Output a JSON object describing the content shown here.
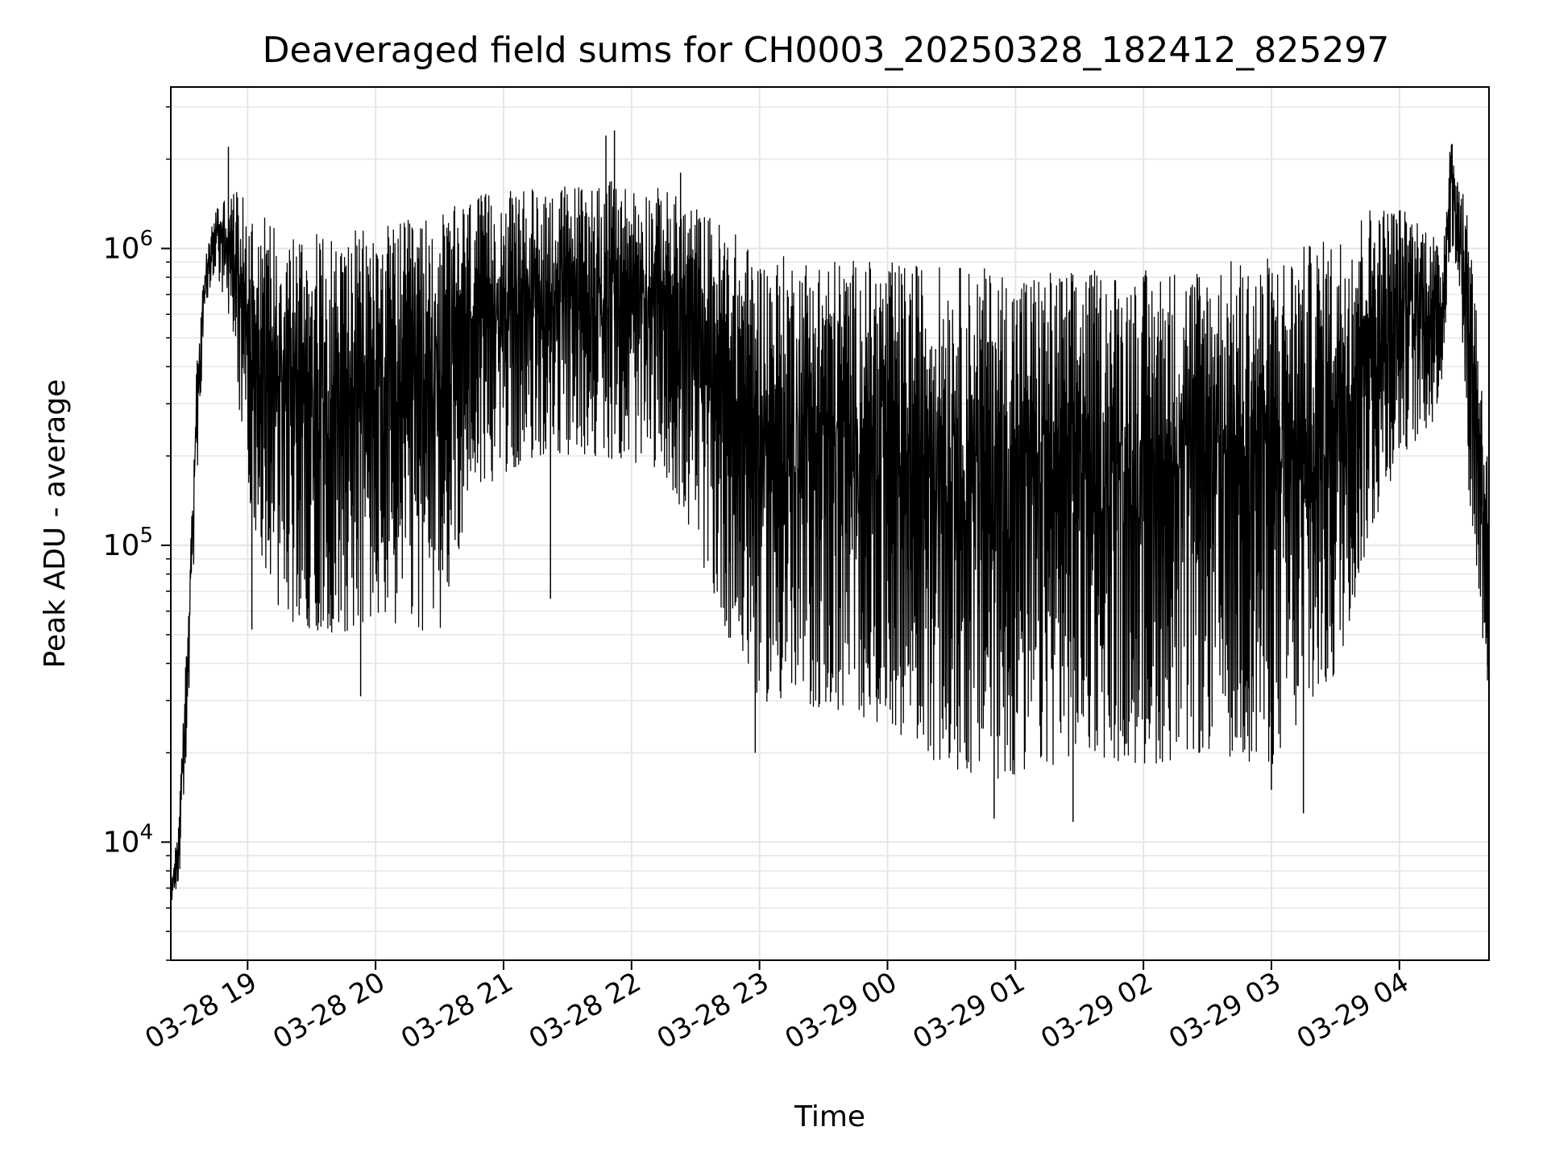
{
  "chart_data": {
    "type": "line",
    "title": "Deaveraged field sums for CH0003_20250328_182412_825297",
    "xlabel": "Time",
    "ylabel": "Peak ADU - average",
    "yscale": "log",
    "xlim": [
      "2025-03-28 18:24",
      "2025-03-29 04:42"
    ],
    "ylim": [
      4000,
      3500000
    ],
    "grid": true,
    "grid_minor": true,
    "line_color": "#000000",
    "x_ticks": [
      {
        "t": "2025-03-28 19:00",
        "label": "03-28 19"
      },
      {
        "t": "2025-03-28 20:00",
        "label": "03-28 20"
      },
      {
        "t": "2025-03-28 21:00",
        "label": "03-28 21"
      },
      {
        "t": "2025-03-28 22:00",
        "label": "03-28 22"
      },
      {
        "t": "2025-03-28 23:00",
        "label": "03-28 23"
      },
      {
        "t": "2025-03-29 00:00",
        "label": "03-29 00"
      },
      {
        "t": "2025-03-29 01:00",
        "label": "03-29 01"
      },
      {
        "t": "2025-03-29 02:00",
        "label": "03-29 02"
      },
      {
        "t": "2025-03-29 03:00",
        "label": "03-29 03"
      },
      {
        "t": "2025-03-29 04:00",
        "label": "03-29 04"
      }
    ],
    "y_ticks": [
      {
        "value": 10000,
        "base": "10",
        "exp": "4"
      },
      {
        "value": 100000,
        "base": "10",
        "exp": "5"
      },
      {
        "value": 1000000,
        "base": "10",
        "exp": "6"
      }
    ],
    "envelope": [
      {
        "t": "2025-03-28 18:24",
        "lo": 6000,
        "hi": 7000
      },
      {
        "t": "2025-03-28 18:28",
        "lo": 7500,
        "hi": 13000
      },
      {
        "t": "2025-03-28 18:32",
        "lo": 25000,
        "hi": 60000
      },
      {
        "t": "2025-03-28 18:36",
        "lo": 150000,
        "hi": 400000
      },
      {
        "t": "2025-03-28 18:40",
        "lo": 600000,
        "hi": 900000
      },
      {
        "t": "2025-03-28 18:45",
        "lo": 850000,
        "hi": 1400000
      },
      {
        "t": "2025-03-28 18:50",
        "lo": 600000,
        "hi": 1500000
      },
      {
        "t": "2025-03-28 18:55",
        "lo": 350000,
        "hi": 1600000
      },
      {
        "t": "2025-03-28 19:00",
        "lo": 150000,
        "hi": 1400000
      },
      {
        "t": "2025-03-28 19:10",
        "lo": 70000,
        "hi": 1300000
      },
      {
        "t": "2025-03-28 19:20",
        "lo": 55000,
        "hi": 1200000
      },
      {
        "t": "2025-03-28 19:40",
        "lo": 50000,
        "hi": 1100000
      },
      {
        "t": "2025-03-28 20:00",
        "lo": 55000,
        "hi": 1200000
      },
      {
        "t": "2025-03-28 20:30",
        "lo": 50000,
        "hi": 1300000
      },
      {
        "t": "2025-03-28 20:45",
        "lo": 150000,
        "hi": 1500000
      },
      {
        "t": "2025-03-28 21:15",
        "lo": 200000,
        "hi": 1600000
      },
      {
        "t": "2025-03-28 21:45",
        "lo": 200000,
        "hi": 1700000
      },
      {
        "t": "2025-03-28 22:15",
        "lo": 180000,
        "hi": 1600000
      },
      {
        "t": "2025-03-28 22:30",
        "lo": 100000,
        "hi": 1400000
      },
      {
        "t": "2025-03-28 22:45",
        "lo": 50000,
        "hi": 1200000
      },
      {
        "t": "2025-03-28 23:00",
        "lo": 30000,
        "hi": 950000
      },
      {
        "t": "2025-03-28 23:30",
        "lo": 28000,
        "hi": 950000
      },
      {
        "t": "2025-03-29 00:00",
        "lo": 25000,
        "hi": 900000
      },
      {
        "t": "2025-03-29 00:30",
        "lo": 17000,
        "hi": 880000
      },
      {
        "t": "2025-03-29 01:00",
        "lo": 16000,
        "hi": 850000
      },
      {
        "t": "2025-03-29 01:30",
        "lo": 20000,
        "hi": 850000
      },
      {
        "t": "2025-03-29 02:00",
        "lo": 18000,
        "hi": 850000
      },
      {
        "t": "2025-03-29 02:30",
        "lo": 20000,
        "hi": 900000
      },
      {
        "t": "2025-03-29 03:00",
        "lo": 18000,
        "hi": 950000
      },
      {
        "t": "2025-03-29 03:30",
        "lo": 35000,
        "hi": 1100000
      },
      {
        "t": "2025-03-29 03:45",
        "lo": 100000,
        "hi": 1400000
      },
      {
        "t": "2025-03-29 04:00",
        "lo": 200000,
        "hi": 1400000
      },
      {
        "t": "2025-03-29 04:15",
        "lo": 250000,
        "hi": 1200000
      },
      {
        "t": "2025-03-29 04:20",
        "lo": 350000,
        "hi": 900000
      },
      {
        "t": "2025-03-29 04:24",
        "lo": 1000000,
        "hi": 2700000
      },
      {
        "t": "2025-03-29 04:28",
        "lo": 800000,
        "hi": 1600000
      },
      {
        "t": "2025-03-29 04:33",
        "lo": 130000,
        "hi": 1400000
      },
      {
        "t": "2025-03-29 04:42",
        "lo": 30000,
        "hi": 170000
      }
    ],
    "spikes": [
      {
        "t": "2025-03-28 18:51",
        "value": 2200000
      },
      {
        "t": "2025-03-28 19:02",
        "value": 52000
      },
      {
        "t": "2025-03-28 19:53",
        "value": 31000
      },
      {
        "t": "2025-03-28 21:22",
        "value": 66000
      },
      {
        "t": "2025-03-28 21:48",
        "value": 2400000
      },
      {
        "t": "2025-03-28 21:52",
        "value": 2500000
      },
      {
        "t": "2025-03-28 22:23",
        "value": 1800000
      },
      {
        "t": "2025-03-28 22:58",
        "value": 20000
      },
      {
        "t": "2025-03-29 00:50",
        "value": 12000
      },
      {
        "t": "2025-03-29 01:27",
        "value": 11700
      },
      {
        "t": "2025-03-29 03:00",
        "value": 15000
      },
      {
        "t": "2025-03-29 03:15",
        "value": 12500
      }
    ]
  }
}
